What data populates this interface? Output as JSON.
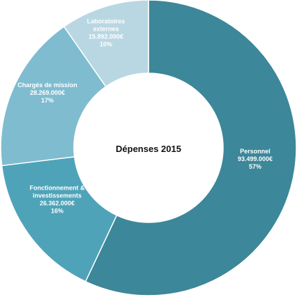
{
  "chart_data": {
    "type": "pie",
    "variant": "donut",
    "title": "Dépenses 2015",
    "slices": [
      {
        "label": "Personnel",
        "amount": "93.499.000€",
        "value": 93499000,
        "percent": "57%",
        "color": "#3c8799"
      },
      {
        "label": "Fonctionnement & investissements",
        "amount": "26.362.000€",
        "value": 26362000,
        "percent": "16%",
        "color": "#4fa3b8"
      },
      {
        "label": "Chargés de mission",
        "amount": "28.269.000€",
        "value": 28269000,
        "percent": "17%",
        "color": "#7fbcd0"
      },
      {
        "label": "Laboratoires externes",
        "amount": "15.892.000€",
        "value": 15892000,
        "percent": "10%",
        "color": "#b9d7e3"
      }
    ],
    "legend": "none"
  }
}
